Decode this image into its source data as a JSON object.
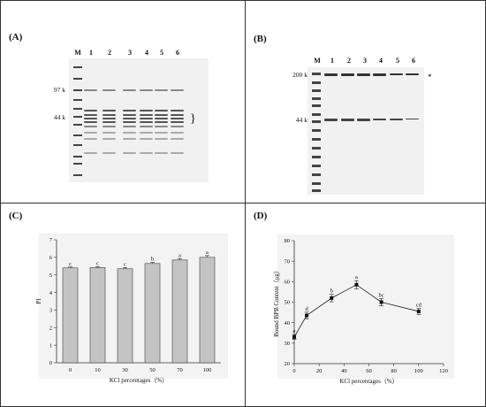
{
  "panels": {
    "a": {
      "label": "(A)",
      "lanes": [
        "M",
        "1",
        "2",
        "3",
        "4",
        "5",
        "6"
      ],
      "mw": [
        "97 k",
        "44 k"
      ],
      "bracket": "}"
    },
    "b": {
      "label": "(B)",
      "lanes": [
        "M",
        "1",
        "2",
        "3",
        "4",
        "5",
        "6"
      ],
      "mw": [
        "200 k",
        "44 k"
      ],
      "star": "*"
    },
    "c": {
      "label": "(C)"
    },
    "d": {
      "label": "(D)"
    }
  },
  "chart_data": [
    {
      "type": "bar",
      "categories": [
        "0",
        "10",
        "30",
        "50",
        "70",
        "100"
      ],
      "values": [
        5.4,
        5.42,
        5.35,
        5.65,
        5.85,
        6.0
      ],
      "errors": [
        0.05,
        0.05,
        0.07,
        0.06,
        0.07,
        0.1
      ],
      "letters": [
        "c",
        "c",
        "c",
        "b",
        "a",
        "a"
      ],
      "xlabel": "KCl percentages（%）",
      "ylabel": "PI",
      "ylim": [
        0,
        7
      ],
      "yticks": [
        "0",
        "1",
        "2",
        "3",
        "4",
        "5",
        "6",
        "7"
      ],
      "bar_color": "#c4c4c4"
    },
    {
      "type": "line",
      "x": [
        0,
        10,
        30,
        50,
        70,
        100
      ],
      "y": [
        33,
        43.5,
        52,
        58.5,
        50,
        45.5
      ],
      "errors": [
        1.2,
        1.6,
        1.8,
        2.0,
        1.8,
        1.5
      ],
      "letters": [
        "e",
        "d",
        "b",
        "a",
        "bc",
        "cd"
      ],
      "xlabel": "KCl percentages（%）",
      "ylabel": "Bound BPB Content（μg）",
      "xlim": [
        0,
        120
      ],
      "ylim": [
        20,
        80
      ],
      "xticks": [
        "0",
        "20",
        "40",
        "60",
        "80",
        "100",
        "120"
      ],
      "yticks": [
        "20",
        "30",
        "40",
        "50",
        "60",
        "70",
        "80"
      ]
    }
  ]
}
